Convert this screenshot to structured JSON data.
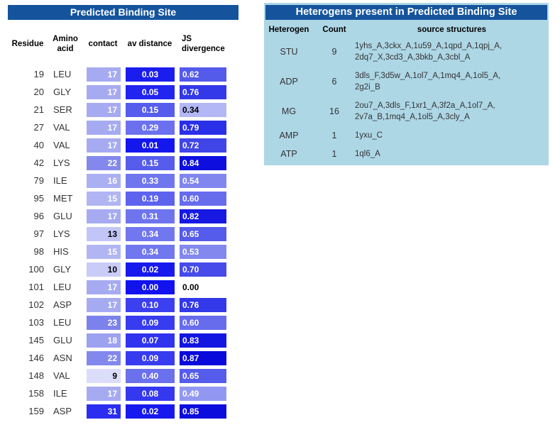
{
  "colors": {
    "title_bar_bg": "#15549d",
    "title_text": "#ffffff",
    "panel_bg": "#aed7e6",
    "cell_text_light": "#ffffff",
    "cell_text_dark": "#000000"
  },
  "left_table": {
    "title": "Predicted Binding Site",
    "headers": {
      "residue": "Residue",
      "amino": "Amino\nacid",
      "contact": "contact",
      "distance": "av distance",
      "js": "JS\ndivergence"
    },
    "rows": [
      {
        "residue": "19",
        "aa": "LEU",
        "contact": "17",
        "contact_bg": "#a6abf1",
        "contact_fg": "#ffffff",
        "dist": "0.03",
        "dist_bg": "#1b1def",
        "dist_fg": "#ffffff",
        "js": "0.62",
        "js_bg": "#545aea",
        "js_fg": "#ffffff"
      },
      {
        "residue": "20",
        "aa": "GLY",
        "contact": "17",
        "contact_bg": "#a6abf1",
        "contact_fg": "#ffffff",
        "dist": "0.05",
        "dist_bg": "#2225ef",
        "dist_fg": "#ffffff",
        "js": "0.76",
        "js_bg": "#3338e9",
        "js_fg": "#ffffff"
      },
      {
        "residue": "21",
        "aa": "SER",
        "contact": "17",
        "contact_bg": "#a6abf1",
        "contact_fg": "#ffffff",
        "dist": "0.15",
        "dist_bg": "#565cec",
        "dist_fg": "#ffffff",
        "js": "0.34",
        "js_bg": "#b3b7f5",
        "js_fg": "#000000"
      },
      {
        "residue": "27",
        "aa": "VAL",
        "contact": "17",
        "contact_bg": "#a6abf1",
        "contact_fg": "#ffffff",
        "dist": "0.29",
        "dist_bg": "#6b71ee",
        "dist_fg": "#ffffff",
        "js": "0.79",
        "js_bg": "#2a2fe8",
        "js_fg": "#ffffff"
      },
      {
        "residue": "40",
        "aa": "VAL",
        "contact": "17",
        "contact_bg": "#a6abf1",
        "contact_fg": "#ffffff",
        "dist": "0.01",
        "dist_bg": "#1416ee",
        "dist_fg": "#ffffff",
        "js": "0.72",
        "js_bg": "#4045e8",
        "js_fg": "#ffffff"
      },
      {
        "residue": "42",
        "aa": "LYS",
        "contact": "22",
        "contact_bg": "#8288ec",
        "contact_fg": "#ffffff",
        "dist": "0.15",
        "dist_bg": "#565cec",
        "dist_fg": "#ffffff",
        "js": "0.84",
        "js_bg": "#0e0fdf",
        "js_fg": "#ffffff"
      },
      {
        "residue": "79",
        "aa": "ILE",
        "contact": "16",
        "contact_bg": "#abb0f2",
        "contact_fg": "#ffffff",
        "dist": "0.33",
        "dist_bg": "#7076ee",
        "dist_fg": "#ffffff",
        "js": "0.54",
        "js_bg": "#8086ee",
        "js_fg": "#ffffff"
      },
      {
        "residue": "95",
        "aa": "MET",
        "contact": "15",
        "contact_bg": "#b1b6f3",
        "contact_fg": "#ffffff",
        "dist": "0.19",
        "dist_bg": "#5d63ed",
        "dist_fg": "#ffffff",
        "js": "0.60",
        "js_bg": "#666cec",
        "js_fg": "#ffffff"
      },
      {
        "residue": "96",
        "aa": "GLU",
        "contact": "17",
        "contact_bg": "#a6abf1",
        "contact_fg": "#ffffff",
        "dist": "0.31",
        "dist_bg": "#6e74ee",
        "dist_fg": "#ffffff",
        "js": "0.82",
        "js_bg": "#1719e2",
        "js_fg": "#ffffff"
      },
      {
        "residue": "97",
        "aa": "LYS",
        "contact": "13",
        "contact_bg": "#c2c6f6",
        "contact_fg": "#000000",
        "dist": "0.34",
        "dist_bg": "#7177ee",
        "dist_fg": "#ffffff",
        "js": "0.65",
        "js_bg": "#555bea",
        "js_fg": "#ffffff"
      },
      {
        "residue": "98",
        "aa": "HIS",
        "contact": "15",
        "contact_bg": "#b1b6f3",
        "contact_fg": "#ffffff",
        "dist": "0.34",
        "dist_bg": "#7177ee",
        "dist_fg": "#ffffff",
        "js": "0.53",
        "js_bg": "#8288ee",
        "js_fg": "#ffffff"
      },
      {
        "residue": "100",
        "aa": "GLY",
        "contact": "10",
        "contact_bg": "#c9ccf7",
        "contact_fg": "#000000",
        "dist": "0.02",
        "dist_bg": "#1719ee",
        "dist_fg": "#ffffff",
        "js": "0.70",
        "js_bg": "#464be9",
        "js_fg": "#ffffff"
      },
      {
        "residue": "101",
        "aa": "LEU",
        "contact": "17",
        "contact_bg": "#a6abf1",
        "contact_fg": "#ffffff",
        "dist": "0.00",
        "dist_bg": "#1112ee",
        "dist_fg": "#ffffff",
        "js": "0.00",
        "js_bg": "transparent",
        "js_fg": "#000000"
      },
      {
        "residue": "102",
        "aa": "ASP",
        "contact": "17",
        "contact_bg": "#a6abf1",
        "contact_fg": "#ffffff",
        "dist": "0.10",
        "dist_bg": "#3c40f0",
        "dist_fg": "#ffffff",
        "js": "0.76",
        "js_bg": "#3338e9",
        "js_fg": "#ffffff"
      },
      {
        "residue": "103",
        "aa": "LEU",
        "contact": "23",
        "contact_bg": "#7c82eb",
        "contact_fg": "#ffffff",
        "dist": "0.09",
        "dist_bg": "#383cf0",
        "dist_fg": "#ffffff",
        "js": "0.60",
        "js_bg": "#666cec",
        "js_fg": "#ffffff"
      },
      {
        "residue": "145",
        "aa": "GLU",
        "contact": "18",
        "contact_bg": "#9ca1f0",
        "contact_fg": "#ffffff",
        "dist": "0.07",
        "dist_bg": "#3034ef",
        "dist_fg": "#ffffff",
        "js": "0.83",
        "js_bg": "#1315e0",
        "js_fg": "#ffffff"
      },
      {
        "residue": "146",
        "aa": "ASN",
        "contact": "22",
        "contact_bg": "#8288ec",
        "contact_fg": "#ffffff",
        "dist": "0.09",
        "dist_bg": "#383cf0",
        "dist_fg": "#ffffff",
        "js": "0.87",
        "js_bg": "#0809da",
        "js_fg": "#ffffff"
      },
      {
        "residue": "148",
        "aa": "VAL",
        "contact": "9",
        "contact_bg": "#dcddfa",
        "contact_fg": "#000000",
        "dist": "0.40",
        "dist_bg": "#6b70ed",
        "dist_fg": "#ffffff",
        "js": "0.65",
        "js_bg": "#555bea",
        "js_fg": "#ffffff"
      },
      {
        "residue": "158",
        "aa": "ILE",
        "contact": "17",
        "contact_bg": "#a6abf1",
        "contact_fg": "#ffffff",
        "dist": "0.08",
        "dist_bg": "#3438ef",
        "dist_fg": "#ffffff",
        "js": "0.49",
        "js_bg": "#9298f1",
        "js_fg": "#ffffff"
      },
      {
        "residue": "159",
        "aa": "ASP",
        "contact": "31",
        "contact_bg": "#2b2df0",
        "contact_fg": "#ffffff",
        "dist": "0.02",
        "dist_bg": "#1719ee",
        "dist_fg": "#ffffff",
        "js": "0.85",
        "js_bg": "#0c0ddc",
        "js_fg": "#ffffff"
      }
    ]
  },
  "right_table": {
    "title": "Heterogens present in Predicted Binding Site",
    "headers": {
      "heterogen": "Heterogen",
      "count": "Count",
      "sources": "source structures"
    },
    "rows": [
      {
        "heterogen": "STU",
        "count": "9",
        "sources": "1yhs_A,3ckx_A,1u59_A,1qpd_A,1qpj_A,\n2dq7_X,3cd3_A,3bkb_A,3cbl_A"
      },
      {
        "heterogen": "ADP",
        "count": "6",
        "sources": "3dls_F,3d5w_A,1ol7_A,1mq4_A,1ol5_A,\n2g2i_B"
      },
      {
        "heterogen": "MG",
        "count": "16",
        "sources": "2ou7_A,3dls_F,1xr1_A,3f2a_A,1ol7_A,\n2v7a_B,1mq4_A,1ol5_A,3cly_A"
      },
      {
        "heterogen": "AMP",
        "count": "1",
        "sources": "1yxu_C"
      },
      {
        "heterogen": "ATP",
        "count": "1",
        "sources": "1ql6_A"
      }
    ]
  }
}
